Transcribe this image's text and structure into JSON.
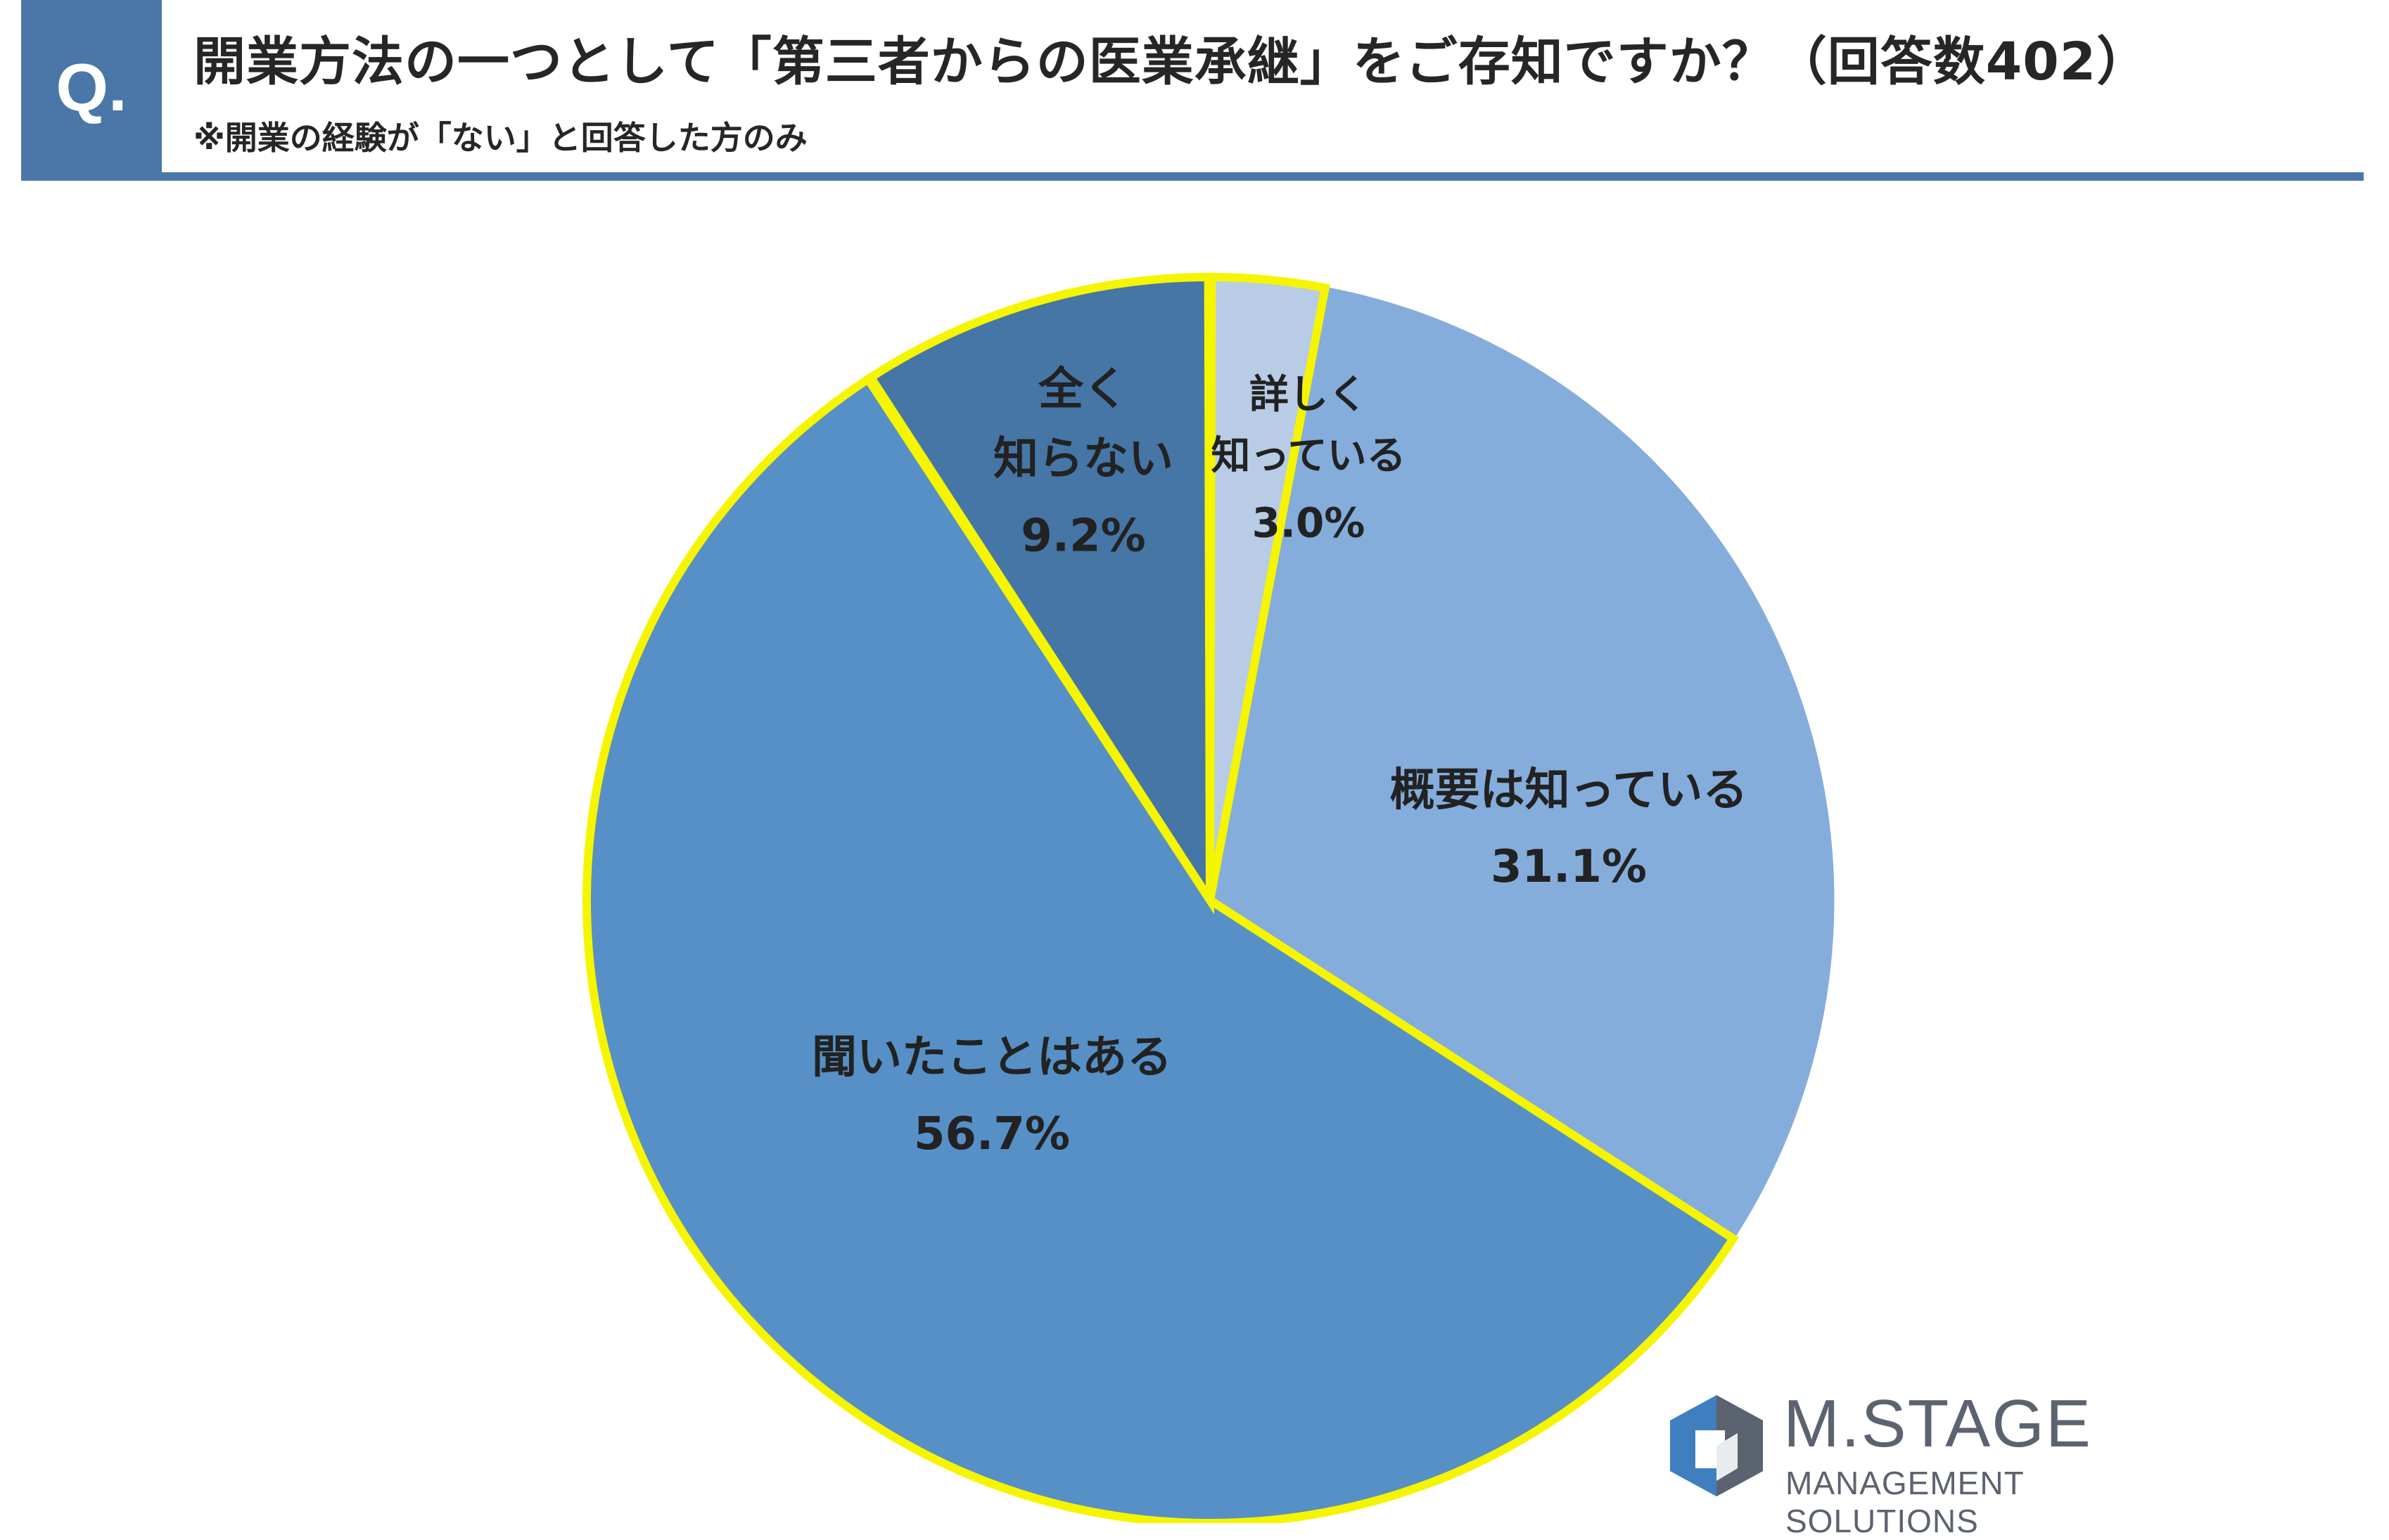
{
  "header": {
    "badge": "Q.",
    "title": "開業方法の一つとして「第三者からの医業承継」をご存知ですか？（回答数402）",
    "subtitle": "※開業の経験が「ない」と回答した方のみ"
  },
  "chart_data": {
    "type": "pie",
    "start_angle_deg": 0,
    "direction": "clockwise",
    "slices": [
      {
        "label_lines": [
          "詳しく",
          "知っている"
        ],
        "value": 3.0,
        "value_label": "3.0%",
        "color": "#b8cce6",
        "highlight": true
      },
      {
        "label_lines": [
          "概要は知っている"
        ],
        "value": 31.1,
        "value_label": "31.1%",
        "color": "#85addb",
        "highlight": false
      },
      {
        "label_lines": [
          "聞いたことはある"
        ],
        "value": 56.7,
        "value_label": "56.7%",
        "color": "#5690c6",
        "highlight": true
      },
      {
        "label_lines": [
          "全く",
          "知らない"
        ],
        "value": 9.2,
        "value_label": "9.2%",
        "color": "#4576a6",
        "highlight": true
      }
    ],
    "highlight_color": "#f5f500",
    "divider_color": "#ffffff"
  },
  "logo": {
    "name": "M.STAGE",
    "subtitle": "MANAGEMENT SOLUTIONS",
    "colors": {
      "primary": "#3f7fc0",
      "secondary": "#5c6370"
    }
  }
}
